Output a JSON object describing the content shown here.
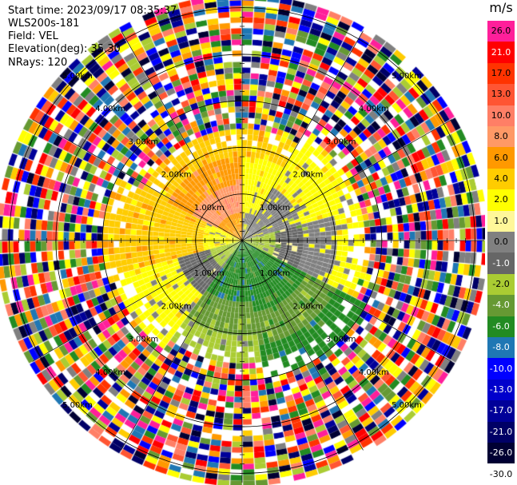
{
  "header": {
    "start_time": "Start time: 2023/09/17 08:35:37",
    "instrument": "WLS200s-181",
    "field": "Field: VEL",
    "elevation": "Elevation(deg): 35.30",
    "nrays": "NRays: 120"
  },
  "colorbar": {
    "title": "m/s",
    "levels": [
      {
        "label": "26.0",
        "color": "#ff1f9a",
        "text": "#000000"
      },
      {
        "label": "21.0",
        "color": "#ff0000",
        "text": "#ffffff"
      },
      {
        "label": "17.0",
        "color": "#ff3300",
        "text": "#000000"
      },
      {
        "label": "13.0",
        "color": "#ff5533",
        "text": "#000000"
      },
      {
        "label": "10.0",
        "color": "#ff7f66",
        "text": "#000000"
      },
      {
        "label": "8.0",
        "color": "#ff9966",
        "text": "#000000"
      },
      {
        "label": "6.0",
        "color": "#ff9900",
        "text": "#000000"
      },
      {
        "label": "4.0",
        "color": "#ffcc00",
        "text": "#000000"
      },
      {
        "label": "2.0",
        "color": "#ffff00",
        "text": "#000000"
      },
      {
        "label": "1.0",
        "color": "#fff799",
        "text": "#000000"
      },
      {
        "label": "0.0",
        "color": "#808080",
        "text": "#000000"
      },
      {
        "label": "-1.0",
        "color": "#666666",
        "text": "#ffffff"
      },
      {
        "label": "-2.0",
        "color": "#aacc33",
        "text": "#000000"
      },
      {
        "label": "-4.0",
        "color": "#669933",
        "text": "#ffffff"
      },
      {
        "label": "-6.0",
        "color": "#228b22",
        "text": "#ffffff"
      },
      {
        "label": "-8.0",
        "color": "#1f77b4",
        "text": "#ffffff"
      },
      {
        "label": "-10.0",
        "color": "#0000ff",
        "text": "#ffffff"
      },
      {
        "label": "-13.0",
        "color": "#0000cc",
        "text": "#ffffff"
      },
      {
        "label": "-17.0",
        "color": "#000099",
        "text": "#ffffff"
      },
      {
        "label": "-21.0",
        "color": "#000066",
        "text": "#ffffff"
      },
      {
        "label": "-26.0",
        "color": "#000033",
        "text": "#ffffff"
      },
      {
        "label": "-30.0",
        "color": "#ffffff",
        "text": "#000000"
      }
    ]
  },
  "chart_data": {
    "type": "heatmap",
    "subtype": "ppi",
    "field": "VEL",
    "units": "m/s",
    "nrays": 120,
    "elevation_deg": 35.3,
    "range_rings_km": [
      1.0,
      2.0,
      3.0,
      4.0,
      5.0
    ],
    "ring_labels": [
      "1.00km",
      "2.00km",
      "3.00km",
      "4.00km",
      "5.00km"
    ],
    "max_range_km": 5.2,
    "gate_spacing_km": 0.12,
    "spoke_azimuths_deg": [
      0,
      30,
      60,
      90,
      120,
      150,
      180,
      210,
      240,
      270,
      300,
      330
    ],
    "label_azimuths_deg": [
      45,
      135,
      225,
      315
    ],
    "sectors": [
      {
        "az_from": 0,
        "az_to": 30,
        "rmax_km": 2.4,
        "values": [
          0.5,
          2.0,
          2.0,
          4.0
        ]
      },
      {
        "az_from": 30,
        "az_to": 75,
        "rmax_km": 2.6,
        "values": [
          0.5,
          0.0,
          2.0,
          2.0
        ]
      },
      {
        "az_from": 75,
        "az_to": 115,
        "rmax_km": 2.6,
        "values": [
          -2.0,
          -1.0,
          0.5,
          2.0
        ]
      },
      {
        "az_from": 115,
        "az_to": 170,
        "rmax_km": 2.9,
        "values": [
          -6.0,
          -6.0,
          -4.0,
          -6.0
        ]
      },
      {
        "az_from": 170,
        "az_to": 215,
        "rmax_km": 2.6,
        "values": [
          -6.0,
          -6.0,
          -4.0,
          -2.0
        ]
      },
      {
        "az_from": 215,
        "az_to": 255,
        "rmax_km": 2.8,
        "values": [
          -2.0,
          -1.0,
          2.0,
          2.0
        ]
      },
      {
        "az_from": 255,
        "az_to": 295,
        "rmax_km": 2.9,
        "values": [
          2.0,
          4.0,
          4.0,
          4.0
        ]
      },
      {
        "az_from": 295,
        "az_to": 360,
        "rmax_km": 2.3,
        "values": [
          6.0,
          8.0,
          6.0,
          4.0
        ]
      }
    ],
    "outer_region": "noise"
  }
}
